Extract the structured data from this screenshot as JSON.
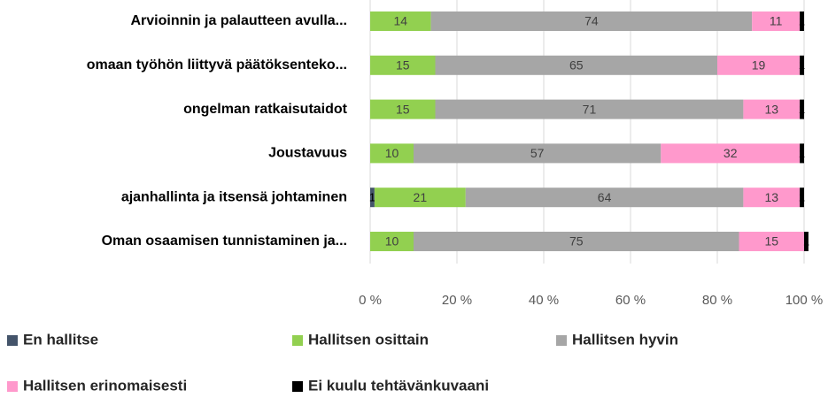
{
  "chart_data": {
    "type": "stacked-bar-horizontal",
    "categories": [
      "Arvioinnin ja palautteen avulla...",
      "omaan työhön liittyvä päätöksenteko...",
      "ongelman ratkaisutaidot",
      "Joustavuus",
      "ajanhallinta ja itsensä johtaminen",
      "Oman osaamisen tunnistaminen ja..."
    ],
    "series": [
      {
        "name": "En hallitse",
        "color": "#44546a",
        "values": [
          0,
          0,
          0,
          0,
          1,
          0
        ]
      },
      {
        "name": "Hallitsen osittain",
        "color": "#92d050",
        "values": [
          14,
          15,
          15,
          10,
          21,
          10
        ]
      },
      {
        "name": "Hallitsen hyvin",
        "color": "#a6a6a6",
        "values": [
          74,
          65,
          71,
          57,
          64,
          75
        ]
      },
      {
        "name": "Hallitsen erinomaisesti",
        "color": "#ff99cc",
        "values": [
          11,
          19,
          13,
          32,
          13,
          15
        ]
      },
      {
        "name": "Ei kuulu tehtävänkuvaani",
        "color": "#000000",
        "values": [
          1,
          1,
          1,
          1,
          1,
          1
        ]
      }
    ],
    "xlim": [
      0,
      100
    ],
    "xticks": [
      {
        "value": 0,
        "label": "0 %"
      },
      {
        "value": 20,
        "label": "20 %"
      },
      {
        "value": 40,
        "label": "40 %"
      },
      {
        "value": 60,
        "label": "60 %"
      },
      {
        "value": 80,
        "label": "80 %"
      },
      {
        "value": 100,
        "label": "100 %"
      }
    ],
    "grid": true,
    "legend": "bottom"
  }
}
